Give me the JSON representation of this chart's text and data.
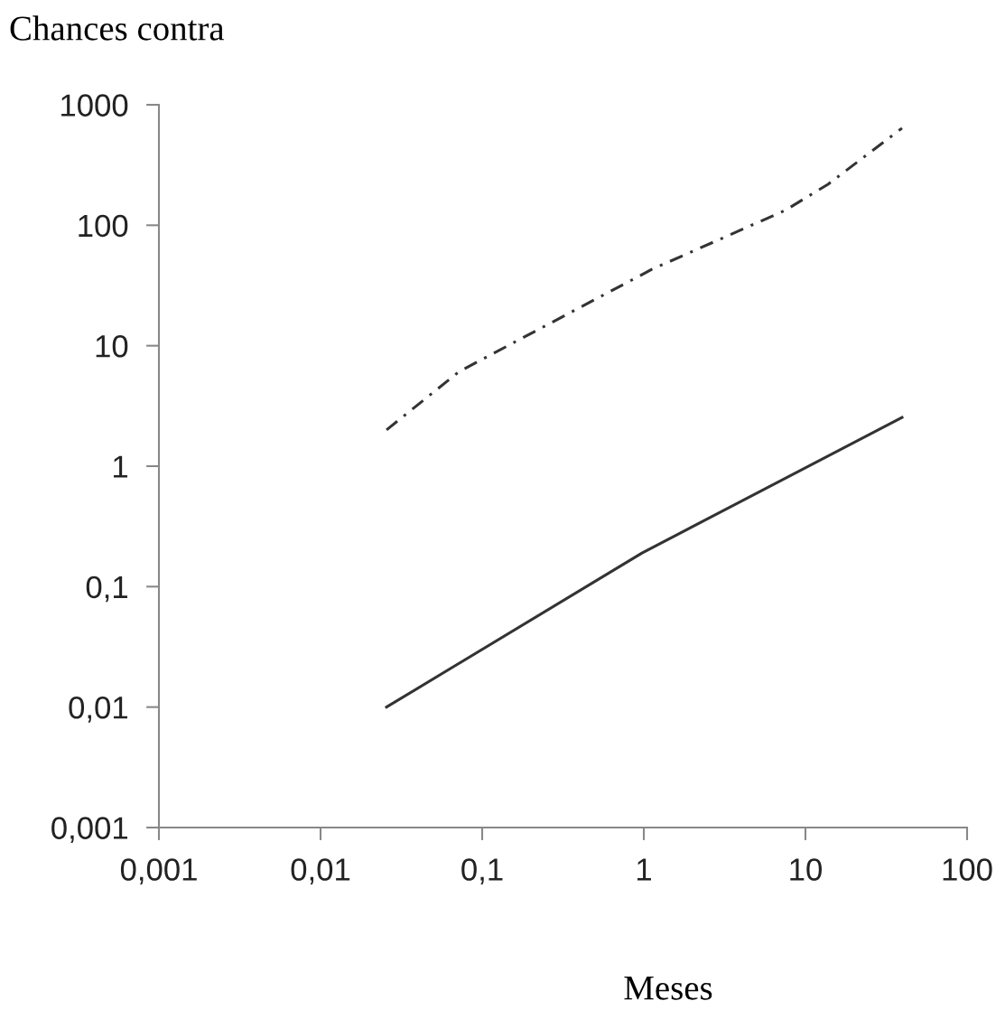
{
  "chart_data": {
    "type": "line",
    "title": "Chances contra",
    "xlabel": "Meses",
    "log": "xy",
    "series": [
      {
        "color": "#333333",
        "line_style": "dashdot",
        "x": [
          0.0256,
          0.072,
          1.12,
          7.5,
          13.8,
          39.6
        ],
        "values": [
          2.0,
          6.1,
          43,
          133,
          219,
          640
        ]
      },
      {
        "color": "#333333",
        "line_style": "solid",
        "x": [
          0.0256,
          0.975,
          39.6
        ],
        "values": [
          0.01,
          0.19,
          2.54
        ]
      }
    ],
    "xlim": [
      0.001,
      100
    ],
    "ylim": [
      0.001,
      1000
    ],
    "xticks": [
      {
        "value": 0.001,
        "label": "0,001"
      },
      {
        "value": 0.01,
        "label": "0,01"
      },
      {
        "value": 0.1,
        "label": "0,1"
      },
      1,
      10,
      100
    ],
    "yticks": [
      {
        "value": 0.001,
        "label": "0,001"
      },
      {
        "value": 0.01,
        "label": "0,01"
      },
      {
        "value": 0.1,
        "label": "0,1"
      },
      1,
      10,
      100,
      1000
    ],
    "grid": false,
    "legend": false
  }
}
